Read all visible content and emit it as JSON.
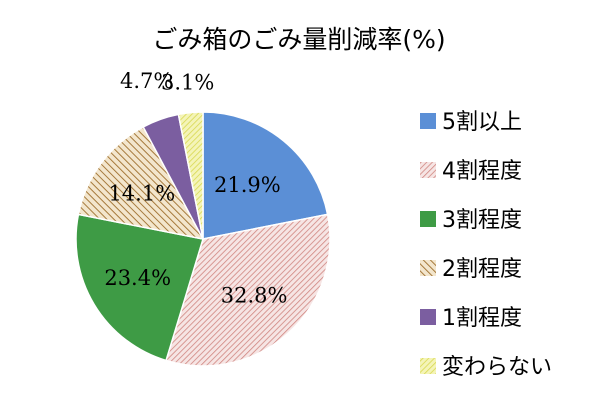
{
  "chart_data": {
    "type": "pie",
    "title": "ごみ箱のごみ量削減率(%)",
    "categories": [
      "5割以上",
      "4割程度",
      "3割程度",
      "2割程度",
      "1割程度",
      "変わらない"
    ],
    "values": [
      21.9,
      32.8,
      23.4,
      14.1,
      4.7,
      3.1
    ],
    "data_labels": [
      "21.9%",
      "32.8%",
      "23.4%",
      "14.1%",
      "4.7%",
      "3.1%"
    ],
    "colors": [
      "#5b8fd6",
      "#d98b88",
      "#3e9b45",
      "#b58a4e",
      "#7b5ea0",
      "#e2e27a"
    ],
    "legend_position": "right"
  }
}
